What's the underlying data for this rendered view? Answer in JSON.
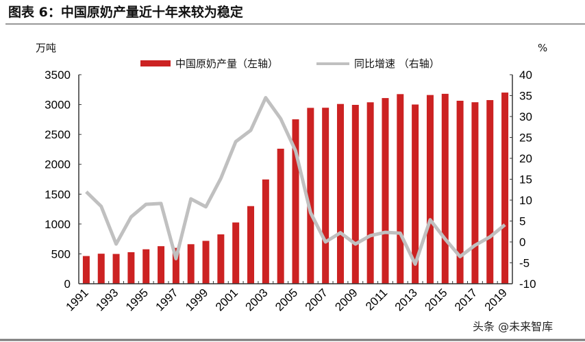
{
  "title": "图表 6：中国原奶产量近十年来较为稳定",
  "watermark": "头条 @未来智库",
  "colors": {
    "bar": "#cc2222",
    "line": "#c0c0c0",
    "rule": "#777777"
  },
  "chart_data": {
    "type": "bar+line",
    "left_axis": {
      "unit_label": "万吨",
      "range": [
        0,
        3500
      ],
      "ticks": [
        "0",
        "500",
        "1000",
        "1500",
        "2000",
        "2500",
        "3000",
        "3500"
      ]
    },
    "right_axis": {
      "unit_label": "%",
      "range": [
        -10,
        40
      ],
      "ticks": [
        "-10",
        "-5",
        "0",
        "5",
        "10",
        "15",
        "20",
        "25",
        "30",
        "35",
        "40"
      ]
    },
    "categories": [
      1991,
      1992,
      1993,
      1994,
      1995,
      1996,
      1997,
      1998,
      1999,
      2000,
      2001,
      2002,
      2003,
      2004,
      2005,
      2006,
      2007,
      2008,
      2009,
      2010,
      2011,
      2012,
      2013,
      2014,
      2015,
      2016,
      2017,
      2018,
      2019
    ],
    "x_tick_labels": [
      "1991",
      "1993",
      "1995",
      "1997",
      "1999",
      "2001",
      "2003",
      "2005",
      "2007",
      "2009",
      "2011",
      "2013",
      "2015",
      "2017",
      "2019"
    ],
    "legend": "top",
    "series": [
      {
        "name": "中国原奶产量（左轴）",
        "type": "bar",
        "axis": "left",
        "values": [
          464,
          503,
          499,
          528,
          577,
          629,
          601,
          662,
          718,
          827,
          1026,
          1300,
          1746,
          2261,
          2753,
          2945,
          2947,
          3010,
          2995,
          3038,
          3109,
          3175,
          3001,
          3160,
          3180,
          3064,
          3039,
          3075,
          3201
        ]
      },
      {
        "name": "同比增速 （右轴）",
        "type": "line",
        "axis": "right",
        "values": [
          12,
          8.5,
          -0.5,
          6,
          9,
          9.2,
          -4,
          10.3,
          8.4,
          15.2,
          24,
          26.7,
          34.5,
          29.5,
          21.8,
          7,
          0,
          2.2,
          -0.5,
          1.5,
          2.3,
          2.1,
          -5.3,
          5.3,
          0.7,
          -3.5,
          -0.8,
          1.2,
          4.1
        ]
      }
    ]
  }
}
